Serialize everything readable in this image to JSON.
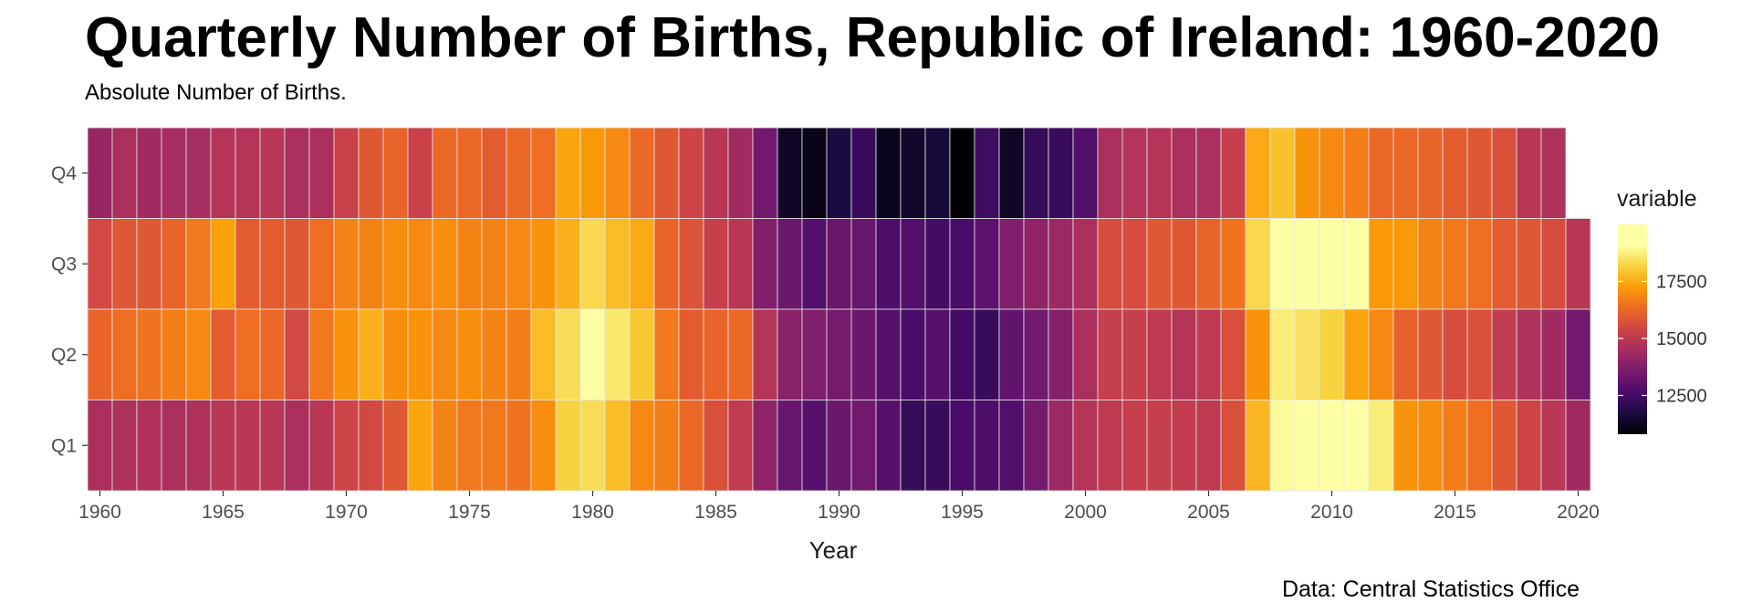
{
  "chart_data": {
    "type": "heatmap",
    "title": "Quarterly Number of Births, Republic of Ireland: 1960-2020",
    "subtitle": "Absolute Number of Births.",
    "caption": "Data: Central Statistics Office",
    "xlabel": "Year",
    "ylabel": "",
    "x_ticks": [
      "1960",
      "1965",
      "1970",
      "1975",
      "1980",
      "1985",
      "1990",
      "1995",
      "2000",
      "2005",
      "2010",
      "2015",
      "2020"
    ],
    "categories_y": [
      "Q1",
      "Q2",
      "Q3",
      "Q4"
    ],
    "years": [
      1960,
      1961,
      1962,
      1963,
      1964,
      1965,
      1966,
      1967,
      1968,
      1969,
      1970,
      1971,
      1972,
      1973,
      1974,
      1975,
      1976,
      1977,
      1978,
      1979,
      1980,
      1981,
      1982,
      1983,
      1984,
      1985,
      1986,
      1987,
      1988,
      1989,
      1990,
      1991,
      1992,
      1993,
      1994,
      1995,
      1996,
      1997,
      1998,
      1999,
      2000,
      2001,
      2002,
      2003,
      2004,
      2005,
      2006,
      2007,
      2008,
      2009,
      2010,
      2011,
      2012,
      2013,
      2014,
      2015,
      2016,
      2017,
      2018,
      2019,
      2020
    ],
    "series": [
      {
        "name": "Q1",
        "values": [
          14600,
          14700,
          14700,
          14600,
          14700,
          14900,
          14900,
          14900,
          14600,
          14900,
          15400,
          15500,
          15900,
          17400,
          16800,
          16600,
          16600,
          16500,
          17000,
          18200,
          18400,
          17800,
          16900,
          16700,
          16300,
          15700,
          15100,
          14000,
          13200,
          12900,
          13300,
          13400,
          12900,
          12200,
          12300,
          12600,
          12700,
          12800,
          13500,
          14300,
          14800,
          15000,
          15200,
          15200,
          15100,
          15000,
          15700,
          17700,
          19000,
          19300,
          19600,
          19800,
          18700,
          17100,
          17000,
          16700,
          16400,
          15900,
          15400,
          14900,
          14400
        ]
      },
      {
        "name": "Q2",
        "values": [
          16200,
          16400,
          16500,
          16700,
          16900,
          16000,
          16400,
          16300,
          15500,
          16600,
          17100,
          17600,
          17000,
          17100,
          16900,
          17000,
          16800,
          16700,
          17800,
          18400,
          19200,
          18600,
          18000,
          16600,
          16000,
          16200,
          16300,
          14800,
          13900,
          13700,
          13500,
          13300,
          12900,
          12600,
          12900,
          12500,
          12300,
          13100,
          13400,
          13800,
          14600,
          15200,
          15200,
          15000,
          14800,
          15000,
          15700,
          17100,
          18700,
          18500,
          18200,
          17400,
          16900,
          16100,
          15900,
          15600,
          15700,
          15100,
          14700,
          14400,
          13400
        ]
      },
      {
        "name": "Q3",
        "values": [
          15500,
          15900,
          15900,
          16200,
          16600,
          17300,
          16000,
          16000,
          15900,
          16400,
          16800,
          16800,
          17000,
          16900,
          17000,
          16800,
          16800,
          16900,
          17100,
          17600,
          18300,
          17800,
          17500,
          16200,
          15800,
          15200,
          14900,
          13700,
          13300,
          12800,
          13300,
          13200,
          12700,
          12800,
          12500,
          12600,
          13000,
          13700,
          14000,
          14300,
          14600,
          15600,
          15600,
          15900,
          15900,
          16200,
          16500,
          18300,
          19600,
          19400,
          19100,
          19200,
          17200,
          17200,
          16800,
          16600,
          16400,
          16000,
          15900,
          15600,
          14900
        ]
      },
      {
        "name": "Q4",
        "values": [
          14200,
          14600,
          14400,
          14500,
          14500,
          14800,
          14800,
          14900,
          14600,
          14600,
          15300,
          15900,
          16200,
          15300,
          16300,
          16300,
          16000,
          16300,
          16400,
          17400,
          17200,
          16900,
          16300,
          15900,
          15400,
          14900,
          14400,
          13400,
          11300,
          11100,
          11700,
          12300,
          11200,
          11400,
          11600,
          10800,
          12400,
          11300,
          12200,
          12300,
          12800,
          14600,
          14800,
          14800,
          14600,
          14600,
          15200,
          17500,
          17900,
          17100,
          16900,
          16700,
          16300,
          16300,
          16200,
          16000,
          15900,
          15700,
          14900,
          14700,
          null
        ]
      }
    ],
    "legend": {
      "title": "variable",
      "ticks": [
        12500,
        15000,
        17500
      ],
      "labels": [
        "12500",
        "15000",
        "17500"
      ],
      "min": 10800,
      "max": 20000,
      "position": "right"
    },
    "grid": false
  }
}
